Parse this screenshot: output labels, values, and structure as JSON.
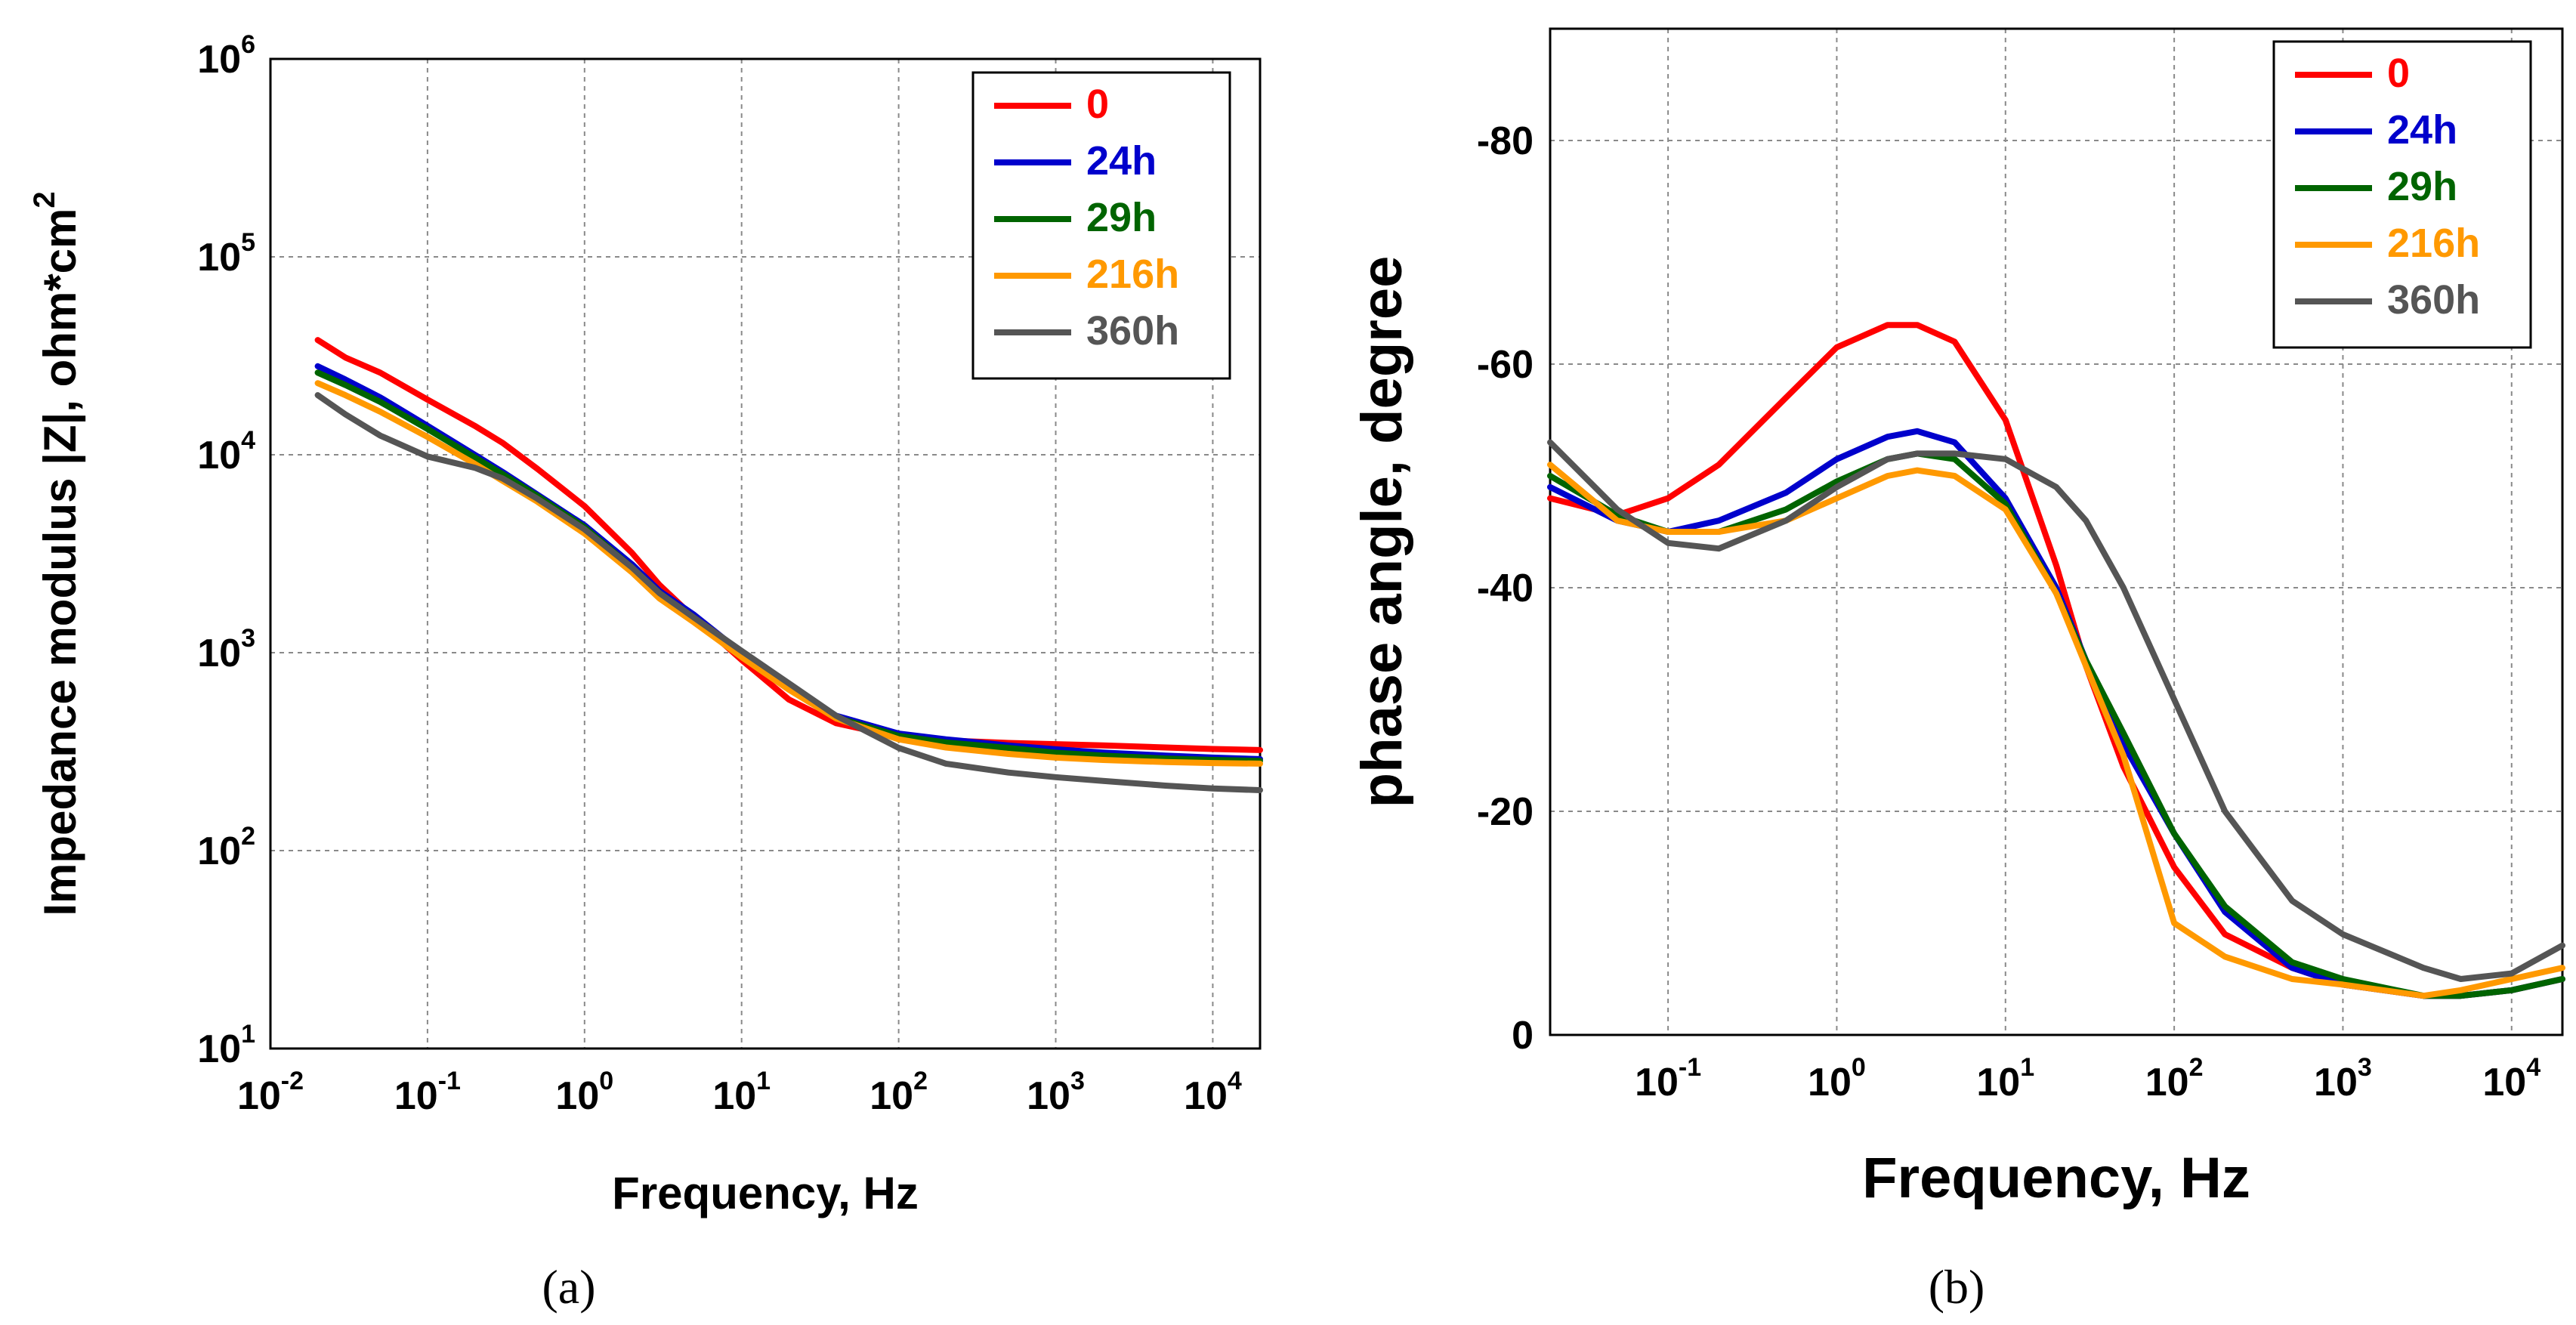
{
  "chart_data": [
    {
      "type": "line",
      "panel_label": "(a)",
      "xlabel": "Frequency, Hz",
      "ylabel": "Impedance modulus |Z|, ohm*cm",
      "ylabel_sup": "2",
      "xscale": "log",
      "yscale": "log",
      "xlim": [
        0.01,
        20000
      ],
      "ylim": [
        10,
        1000000
      ],
      "x_ticks": [
        {
          "base": "10",
          "exp": "-2"
        },
        {
          "base": "10",
          "exp": "-1"
        },
        {
          "base": "10",
          "exp": "0"
        },
        {
          "base": "10",
          "exp": "1"
        },
        {
          "base": "10",
          "exp": "2"
        },
        {
          "base": "10",
          "exp": "3"
        },
        {
          "base": "10",
          "exp": "4"
        }
      ],
      "y_ticks": [
        {
          "base": "10",
          "exp": "1"
        },
        {
          "base": "10",
          "exp": "2"
        },
        {
          "base": "10",
          "exp": "3"
        },
        {
          "base": "10",
          "exp": "4"
        },
        {
          "base": "10",
          "exp": "5"
        },
        {
          "base": "10",
          "exp": "6"
        }
      ],
      "grid": true,
      "legend_position": "top-right",
      "series": [
        {
          "name": "0",
          "color": "#ff0000",
          "x": [
            0.02,
            0.03,
            0.05,
            0.1,
            0.2,
            0.3,
            0.5,
            1,
            2,
            3,
            5,
            10,
            20,
            40,
            100,
            200,
            500,
            1000,
            2000,
            5000,
            10000,
            20000
          ],
          "y": [
            38000,
            31000,
            26000,
            19000,
            14000,
            11500,
            8500,
            5500,
            3200,
            2200,
            1500,
            920,
            580,
            440,
            375,
            360,
            350,
            345,
            340,
            332,
            326,
            322
          ]
        },
        {
          "name": "24h",
          "color": "#0000cc",
          "x": [
            0.02,
            0.03,
            0.05,
            0.1,
            0.2,
            0.3,
            0.5,
            1,
            2,
            3,
            5,
            10,
            20,
            40,
            100,
            200,
            500,
            1000,
            2000,
            5000,
            10000,
            20000
          ],
          "y": [
            28000,
            24000,
            19500,
            14000,
            10000,
            8200,
            6300,
            4400,
            2800,
            2050,
            1550,
            1000,
            680,
            480,
            390,
            365,
            340,
            325,
            313,
            302,
            295,
            290
          ]
        },
        {
          "name": "29h",
          "color": "#006400",
          "x": [
            0.02,
            0.03,
            0.05,
            0.1,
            0.2,
            0.3,
            0.5,
            1,
            2,
            3,
            5,
            10,
            20,
            40,
            100,
            200,
            500,
            1000,
            2000,
            5000,
            10000,
            20000
          ],
          "y": [
            26000,
            22500,
            18500,
            13500,
            9700,
            8000,
            6200,
            4300,
            2700,
            2000,
            1500,
            980,
            660,
            470,
            380,
            352,
            330,
            312,
            302,
            292,
            287,
            284
          ]
        },
        {
          "name": "216h",
          "color": "#ff9900",
          "x": [
            0.02,
            0.03,
            0.05,
            0.1,
            0.2,
            0.3,
            0.5,
            1,
            2,
            3,
            5,
            10,
            20,
            40,
            100,
            200,
            500,
            1000,
            2000,
            5000,
            10000,
            20000
          ],
          "y": [
            23000,
            20000,
            16500,
            12300,
            9000,
            7400,
            5800,
            4000,
            2550,
            1880,
            1420,
            950,
            650,
            465,
            365,
            332,
            308,
            295,
            287,
            280,
            277,
            275
          ]
        },
        {
          "name": "360h",
          "color": "#555555",
          "x": [
            0.02,
            0.03,
            0.05,
            0.1,
            0.2,
            0.3,
            0.5,
            1,
            2,
            3,
            5,
            10,
            20,
            40,
            100,
            200,
            500,
            1000,
            2000,
            5000,
            10000,
            20000
          ],
          "y": [
            20000,
            16000,
            12500,
            9800,
            8600,
            7600,
            6000,
            4200,
            2700,
            2000,
            1500,
            1020,
            700,
            480,
            330,
            275,
            248,
            235,
            225,
            213,
            206,
            202
          ]
        }
      ]
    },
    {
      "type": "line",
      "panel_label": "(b)",
      "xlabel": "Frequency, Hz",
      "ylabel": "phase angle, degree",
      "xscale": "log",
      "yscale": "linear",
      "xlim": [
        0.02,
        20000
      ],
      "ylim": [
        0,
        -90
      ],
      "x_ticks": [
        {
          "base": "10",
          "exp": "-1"
        },
        {
          "base": "10",
          "exp": "0"
        },
        {
          "base": "10",
          "exp": "1"
        },
        {
          "base": "10",
          "exp": "2"
        },
        {
          "base": "10",
          "exp": "3"
        },
        {
          "base": "10",
          "exp": "4"
        }
      ],
      "y_ticks": [
        "0",
        "-20",
        "-40",
        "-60",
        "-80"
      ],
      "grid": true,
      "legend_position": "top-right",
      "series": [
        {
          "name": "0",
          "color": "#ff0000",
          "x": [
            0.02,
            0.05,
            0.1,
            0.2,
            0.5,
            1,
            2,
            3,
            5,
            10,
            20,
            30,
            50,
            100,
            200,
            500,
            1000,
            3000,
            5000,
            10000,
            20000
          ],
          "y": [
            -48,
            -46.5,
            -48,
            -51,
            -57,
            -61.5,
            -63.5,
            -63.5,
            -62,
            -55,
            -42,
            -33,
            -24,
            -15,
            -9,
            -6,
            -4.5,
            -3.5,
            -3.5,
            -4,
            -5
          ]
        },
        {
          "name": "24h",
          "color": "#0000cc",
          "x": [
            0.02,
            0.05,
            0.1,
            0.2,
            0.5,
            1,
            2,
            3,
            5,
            10,
            20,
            30,
            50,
            100,
            200,
            500,
            1000,
            3000,
            5000,
            10000,
            20000
          ],
          "y": [
            -49,
            -46,
            -45,
            -46,
            -48.5,
            -51.5,
            -53.5,
            -54,
            -53,
            -48,
            -40,
            -33.5,
            -26,
            -18,
            -11,
            -6,
            -4.5,
            -3.5,
            -3.5,
            -4,
            -5
          ]
        },
        {
          "name": "29h",
          "color": "#006400",
          "x": [
            0.02,
            0.05,
            0.1,
            0.2,
            0.5,
            1,
            2,
            3,
            5,
            10,
            20,
            30,
            50,
            100,
            200,
            500,
            1000,
            3000,
            5000,
            10000,
            20000
          ],
          "y": [
            -50,
            -46.5,
            -45,
            -45,
            -47,
            -49.5,
            -51.5,
            -52,
            -51.5,
            -47.5,
            -39.5,
            -33.5,
            -27,
            -18,
            -11.5,
            -6.5,
            -5,
            -3.5,
            -3.5,
            -4,
            -5
          ]
        },
        {
          "name": "216h",
          "color": "#ff9900",
          "x": [
            0.02,
            0.05,
            0.1,
            0.2,
            0.5,
            1,
            2,
            3,
            5,
            10,
            20,
            30,
            50,
            100,
            200,
            500,
            1000,
            3000,
            5000,
            10000,
            20000
          ],
          "y": [
            -51,
            -46,
            -45,
            -45,
            -46,
            -48,
            -50,
            -50.5,
            -50,
            -47,
            -39.5,
            -33,
            -25,
            -10,
            -7,
            -5,
            -4.5,
            -3.5,
            -4,
            -5,
            -6
          ]
        },
        {
          "name": "360h",
          "color": "#555555",
          "x": [
            0.02,
            0.05,
            0.1,
            0.2,
            0.5,
            1,
            2,
            3,
            5,
            10,
            20,
            30,
            50,
            100,
            200,
            500,
            1000,
            3000,
            5000,
            10000,
            20000
          ],
          "y": [
            -53,
            -47,
            -44,
            -43.5,
            -46,
            -49,
            -51.5,
            -52,
            -52,
            -51.5,
            -49,
            -46,
            -40,
            -30,
            -20,
            -12,
            -9,
            -6,
            -5,
            -5.5,
            -8
          ]
        }
      ]
    }
  ]
}
